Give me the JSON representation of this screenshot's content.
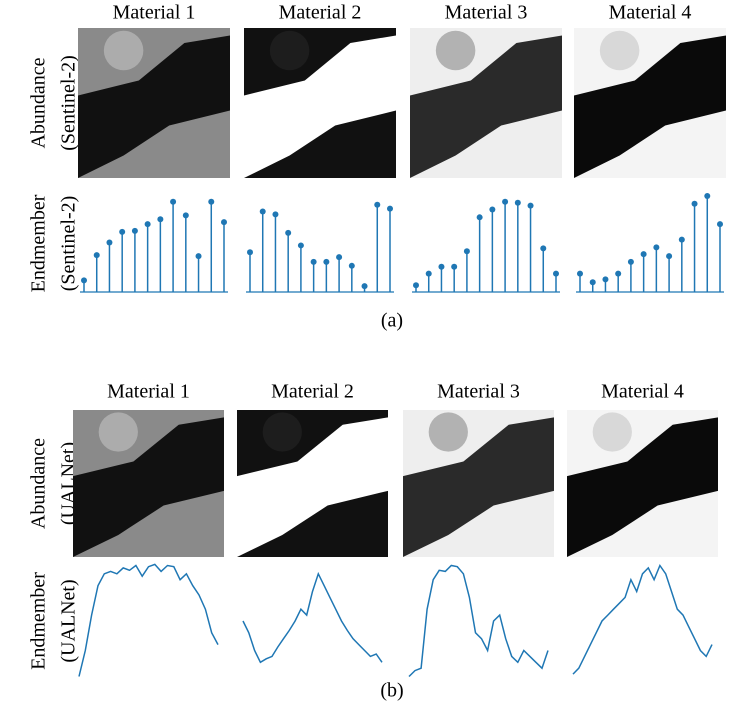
{
  "panels": [
    {
      "label": "(a)",
      "abundance_label": [
        "Abundance",
        "(Sentinel-2)"
      ],
      "endmember_label": [
        "Endmember",
        "(Sentinel-2)"
      ],
      "materials": [
        {
          "title": "Material 1",
          "endmember": [
            0.12,
            0.38,
            0.51,
            0.62,
            0.63,
            0.7,
            0.75,
            0.93,
            0.79,
            0.37,
            0.93,
            0.72
          ]
        },
        {
          "title": "Material 2",
          "endmember": [
            0.41,
            0.83,
            0.8,
            0.61,
            0.48,
            0.31,
            0.31,
            0.36,
            0.27,
            0.06,
            0.9,
            0.86
          ]
        },
        {
          "title": "Material 3",
          "endmember": [
            0.07,
            0.19,
            0.26,
            0.26,
            0.42,
            0.77,
            0.85,
            0.93,
            0.92,
            0.89,
            0.45,
            0.19
          ]
        },
        {
          "title": "Material 4",
          "endmember": [
            0.19,
            0.1,
            0.13,
            0.19,
            0.31,
            0.39,
            0.46,
            0.37,
            0.54,
            0.91,
            0.99,
            0.7
          ]
        }
      ]
    },
    {
      "label": "(b)",
      "abundance_label": [
        "Abundance",
        "(UALNet)"
      ],
      "endmember_label": [
        "Endmember",
        "(UALNet)"
      ],
      "materials": [
        {
          "title": "Material 1",
          "endmember": [
            0.03,
            0.25,
            0.55,
            0.8,
            0.9,
            0.92,
            0.9,
            0.95,
            0.93,
            0.97,
            0.88,
            0.96,
            0.98,
            0.92,
            0.97,
            0.96,
            0.85,
            0.9,
            0.8,
            0.72,
            0.6,
            0.4,
            0.3
          ]
        },
        {
          "title": "Material 2",
          "endmember": [
            0.5,
            0.4,
            0.25,
            0.15,
            0.18,
            0.2,
            0.28,
            0.35,
            0.42,
            0.5,
            0.6,
            0.55,
            0.75,
            0.9,
            0.8,
            0.7,
            0.6,
            0.5,
            0.42,
            0.35,
            0.3,
            0.25,
            0.2,
            0.22,
            0.15
          ]
        },
        {
          "title": "Material 3",
          "endmember": [
            0.03,
            0.08,
            0.1,
            0.6,
            0.85,
            0.93,
            0.92,
            0.97,
            0.96,
            0.9,
            0.7,
            0.4,
            0.35,
            0.25,
            0.5,
            0.55,
            0.35,
            0.2,
            0.15,
            0.25,
            0.2,
            0.15,
            0.1,
            0.25
          ]
        },
        {
          "title": "Material 4",
          "endmember": [
            0.05,
            0.1,
            0.2,
            0.3,
            0.4,
            0.5,
            0.55,
            0.6,
            0.65,
            0.7,
            0.85,
            0.75,
            0.9,
            0.95,
            0.85,
            0.97,
            0.9,
            0.75,
            0.6,
            0.55,
            0.45,
            0.35,
            0.25,
            0.2,
            0.3
          ]
        }
      ]
    }
  ]
}
